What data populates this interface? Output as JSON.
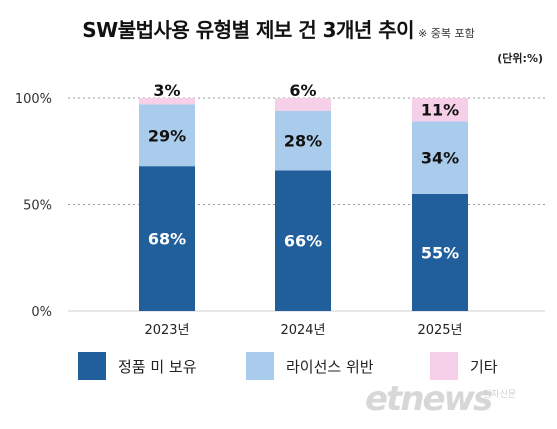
{
  "header": {
    "title": "SW불법사용 유형별 제보 건 3개년 추이",
    "note": "※ 중복 포함",
    "unit": "(단위:%)"
  },
  "watermark": {
    "brand": "etnews",
    "sub": "전자신문"
  },
  "chart_data": {
    "type": "bar",
    "stacked": true,
    "categories": [
      "2023년",
      "2024년",
      "2025년"
    ],
    "series": [
      {
        "name": "정품 미 보유",
        "values": [
          68,
          66,
          55
        ],
        "color": "#215e9c"
      },
      {
        "name": "라이선스 위반",
        "values": [
          29,
          28,
          34
        ],
        "color": "#a9cbec"
      },
      {
        "name": "기타",
        "values": [
          3,
          6,
          11
        ],
        "color": "#f6cfe8"
      }
    ],
    "y_ticks": [
      "0%",
      "50%",
      "100%"
    ],
    "ylim": [
      0,
      100
    ],
    "grid": true,
    "legend_position": "bottom"
  }
}
